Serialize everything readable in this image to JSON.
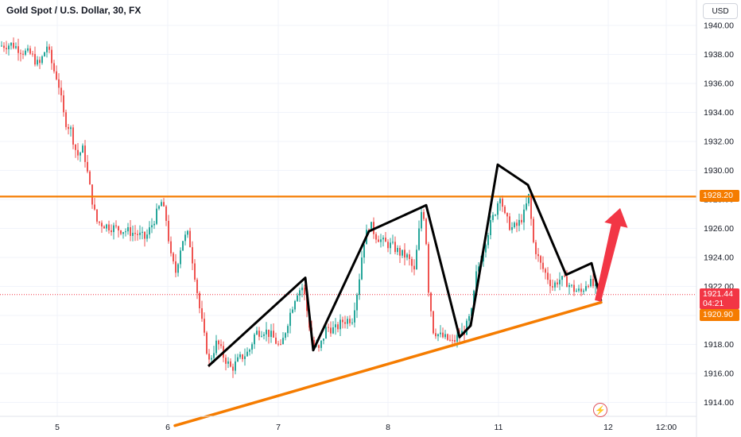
{
  "header": {
    "title": "Gold Spot / U.S. Dollar, 30, FX",
    "currency": "USD"
  },
  "colors": {
    "up": "#26a69a",
    "down": "#ef5350",
    "resistance": "#f57c00",
    "arrow": "#f23645",
    "pattern": "#000000"
  },
  "price_tags": {
    "resistance": "1928.20",
    "last_price": "1921.44",
    "countdown": "04:21",
    "support": "1920.90"
  },
  "icons": {
    "replay": "lightning-bolt-icon"
  },
  "chart_data": {
    "type": "candlestick",
    "title": "Gold Spot / U.S. Dollar, 30, FX",
    "ylim": [
      1913,
      1941
    ],
    "y_ticks": [
      "1940.00",
      "1938.00",
      "1936.00",
      "1934.00",
      "1932.00",
      "1930.00",
      "1928.00",
      "1926.00",
      "1924.00",
      "1922.00",
      "1920.00",
      "1918.00",
      "1916.00",
      "1914.00"
    ],
    "x_ticks": [
      "5",
      "6",
      "7",
      "8",
      "11",
      "12",
      "12:00"
    ],
    "path_points": [
      [
        0,
        1938.6
      ],
      [
        14,
        1938.7
      ],
      [
        28,
        1938.2
      ],
      [
        38,
        1938.0
      ],
      [
        48,
        1937.2
      ],
      [
        58,
        1938.6
      ],
      [
        66,
        1937.0
      ],
      [
        72,
        1936.2
      ],
      [
        80,
        1933.5
      ],
      [
        88,
        1932.8
      ],
      [
        96,
        1931.0
      ],
      [
        104,
        1931.5
      ],
      [
        112,
        1928.8
      ],
      [
        120,
        1926.5
      ],
      [
        132,
        1926.2
      ],
      [
        145,
        1926.0
      ],
      [
        160,
        1925.8
      ],
      [
        172,
        1925.6
      ],
      [
        182,
        1925.3
      ],
      [
        192,
        1926.5
      ],
      [
        202,
        1927.8
      ],
      [
        208,
        1926.6
      ],
      [
        214,
        1924.0
      ],
      [
        220,
        1923.0
      ],
      [
        228,
        1925.2
      ],
      [
        236,
        1925.6
      ],
      [
        244,
        1922.8
      ],
      [
        250,
        1920.5
      ],
      [
        256,
        1918.5
      ],
      [
        262,
        1916.8
      ],
      [
        272,
        1918.2
      ],
      [
        280,
        1917.2
      ],
      [
        290,
        1916.3
      ],
      [
        300,
        1917.0
      ],
      [
        312,
        1917.5
      ],
      [
        320,
        1918.8
      ],
      [
        332,
        1919.0
      ],
      [
        342,
        1918.5
      ],
      [
        352,
        1917.7
      ],
      [
        362,
        1919.8
      ],
      [
        372,
        1921.6
      ],
      [
        380,
        1922.0
      ],
      [
        386,
        1920.0
      ],
      [
        392,
        1918.0
      ],
      [
        400,
        1917.6
      ],
      [
        410,
        1919.2
      ],
      [
        420,
        1919.0
      ],
      [
        430,
        1919.6
      ],
      [
        442,
        1919.8
      ],
      [
        450,
        1922.2
      ],
      [
        456,
        1925.0
      ],
      [
        464,
        1926.3
      ],
      [
        472,
        1925.5
      ],
      [
        482,
        1925.0
      ],
      [
        492,
        1924.8
      ],
      [
        502,
        1924.3
      ],
      [
        512,
        1924.0
      ],
      [
        520,
        1923.0
      ],
      [
        526,
        1925.8
      ],
      [
        530,
        1927.6
      ],
      [
        534,
        1926.2
      ],
      [
        538,
        1921.8
      ],
      [
        544,
        1919.0
      ],
      [
        552,
        1918.6
      ],
      [
        560,
        1918.4
      ],
      [
        568,
        1918.1
      ],
      [
        576,
        1918.6
      ],
      [
        584,
        1919.0
      ],
      [
        592,
        1920.2
      ],
      [
        598,
        1922.8
      ],
      [
        606,
        1924.4
      ],
      [
        614,
        1926.0
      ],
      [
        622,
        1927.2
      ],
      [
        628,
        1928.4
      ],
      [
        634,
        1926.8
      ],
      [
        642,
        1926.0
      ],
      [
        650,
        1926.2
      ],
      [
        658,
        1927.0
      ],
      [
        664,
        1928.2
      ],
      [
        670,
        1925.0
      ],
      [
        678,
        1923.6
      ],
      [
        686,
        1922.8
      ],
      [
        694,
        1922.0
      ],
      [
        702,
        1922.5
      ],
      [
        712,
        1922.3
      ],
      [
        720,
        1921.8
      ],
      [
        730,
        1921.6
      ],
      [
        738,
        1922.4
      ],
      [
        746,
        1922.0
      ],
      [
        752,
        1921.44
      ]
    ],
    "annotations": {
      "resistance_line": {
        "y": 1928.2,
        "label": "1928.20"
      },
      "support_trendline": {
        "from": [
          220,
          1912.4
        ],
        "to": [
          756,
          1920.9
        ],
        "label": "1920.90"
      },
      "pattern_polyline": [
        [
          262,
          1916.5
        ],
        [
          384,
          1922.6
        ],
        [
          394,
          1917.6
        ],
        [
          464,
          1925.8
        ],
        [
          536,
          1927.6
        ],
        [
          578,
          1918.5
        ],
        [
          592,
          1919.3
        ],
        [
          626,
          1930.4
        ],
        [
          664,
          1929.0
        ],
        [
          712,
          1922.8
        ],
        [
          744,
          1923.6
        ],
        [
          756,
          1921.0
        ]
      ],
      "forecast_arrow": {
        "from": [
          752,
          1921.0
        ],
        "to": [
          780,
          1927.4
        ],
        "direction": "up"
      }
    }
  }
}
